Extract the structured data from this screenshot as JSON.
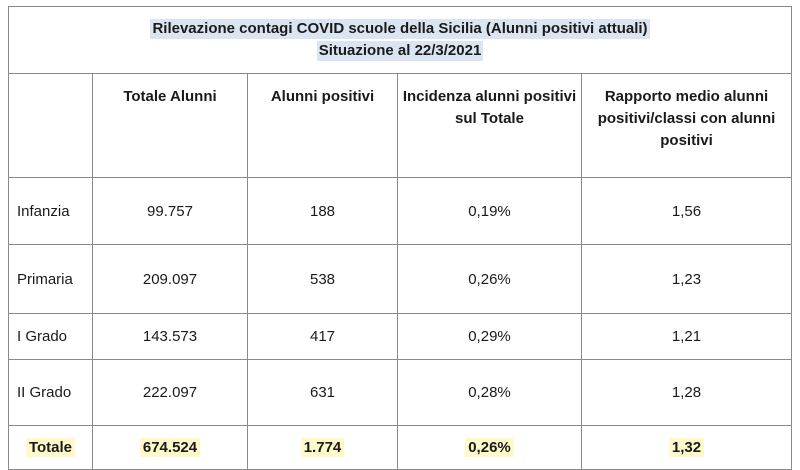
{
  "title": {
    "line1": "Rilevazione contagi COVID scuole della Sicilia (Alunni positivi attuali)",
    "line2": "Situazione al 22/3/2021"
  },
  "header": {
    "col1": "",
    "col2": "Totale Alunni",
    "col3": "Alunni positivi",
    "col4": "Incidenza alunni positivi sul Totale",
    "col5": "Rapporto medio alunni positivi/classi con  alunni positivi"
  },
  "rows": [
    {
      "label": "Infanzia",
      "totale": "99.757",
      "positivi": "188",
      "incidenza": "0,19%",
      "rapporto": "1,56"
    },
    {
      "label": "Primaria",
      "totale": "209.097",
      "positivi": "538",
      "incidenza": "0,26%",
      "rapporto": "1,23"
    },
    {
      "label": "I Grado",
      "totale": "143.573",
      "positivi": "417",
      "incidenza": "0,29%",
      "rapporto": "1,21"
    },
    {
      "label": "II Grado",
      "totale": "222.097",
      "positivi": "631",
      "incidenza": "0,28%",
      "rapporto": "1,28"
    }
  ],
  "total": {
    "label": "Totale",
    "totale": "674.524",
    "positivi": "1.774",
    "incidenza": "0,26%",
    "rapporto": "1,32"
  },
  "colors": {
    "title_highlight": "#dbe5f1",
    "total_highlight": "#fff8c9",
    "border": "#8a8a8a"
  }
}
